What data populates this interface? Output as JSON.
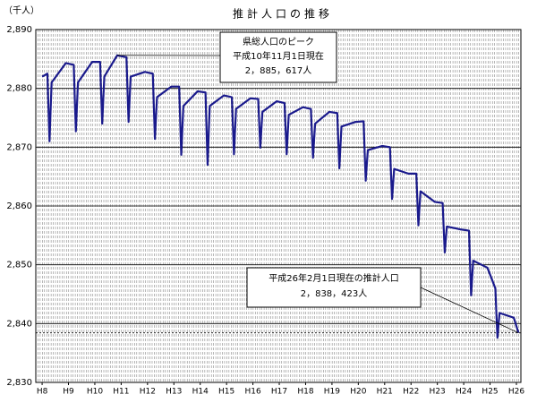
{
  "chart_data": {
    "type": "line",
    "title": "推計人口の推移",
    "y_label": "（千人）",
    "xlim": [
      7.76,
      26.17
    ],
    "xticks": [
      {
        "value": 8,
        "label": "H8"
      },
      {
        "value": 9,
        "label": "H9"
      },
      {
        "value": 10,
        "label": "H10"
      },
      {
        "value": 11,
        "label": "H11"
      },
      {
        "value": 12,
        "label": "H12"
      },
      {
        "value": 13,
        "label": "H13"
      },
      {
        "value": 14,
        "label": "H14"
      },
      {
        "value": 15,
        "label": "H15"
      },
      {
        "value": 16,
        "label": "H16"
      },
      {
        "value": 17,
        "label": "H17"
      },
      {
        "value": 18,
        "label": "H18"
      },
      {
        "value": 19,
        "label": "H19"
      },
      {
        "value": 20,
        "label": "H20"
      },
      {
        "value": 21,
        "label": "H21"
      },
      {
        "value": 22,
        "label": "H22"
      },
      {
        "value": 23,
        "label": "H23"
      },
      {
        "value": 24,
        "label": "H24"
      },
      {
        "value": 25,
        "label": "H25"
      },
      {
        "value": 26,
        "label": "H26"
      }
    ],
    "ylim": [
      2830,
      2890
    ],
    "yticks": [
      {
        "value": 2830,
        "label": "2,830"
      },
      {
        "value": 2840,
        "label": "2,840"
      },
      {
        "value": 2850,
        "label": "2,850"
      },
      {
        "value": 2860,
        "label": "2,860"
      },
      {
        "value": 2870,
        "label": "2,870"
      },
      {
        "value": 2880,
        "label": "2,880"
      },
      {
        "value": 2890,
        "label": "2,890"
      }
    ],
    "grid": true,
    "x": [
      8.0,
      8.2,
      8.28,
      8.36,
      8.9,
      9.2,
      9.28,
      9.36,
      9.9,
      10.2,
      10.28,
      10.36,
      10.85,
      11.2,
      11.28,
      11.36,
      11.9,
      12.2,
      12.28,
      12.36,
      12.9,
      13.2,
      13.28,
      13.36,
      13.9,
      14.2,
      14.28,
      14.36,
      14.9,
      15.2,
      15.28,
      15.36,
      15.9,
      16.2,
      16.28,
      16.36,
      16.9,
      17.2,
      17.28,
      17.36,
      17.9,
      18.2,
      18.28,
      18.36,
      18.9,
      19.2,
      19.28,
      19.36,
      19.9,
      20.2,
      20.28,
      20.36,
      20.9,
      21.2,
      21.28,
      21.36,
      21.9,
      22.2,
      22.28,
      22.36,
      22.9,
      23.2,
      23.28,
      23.36,
      23.9,
      24.2,
      24.28,
      24.36,
      24.9,
      25.2,
      25.28,
      25.36,
      25.9,
      26.08
    ],
    "series": [
      {
        "color": "#1a1a8c",
        "values": [
          2882.0,
          2882.5,
          2871,
          2881,
          2884.3,
          2884,
          2872.7,
          2881,
          2884.5,
          2884.5,
          2874,
          2882,
          2885.617,
          2885.3,
          2874.3,
          2882,
          2882.8,
          2882.5,
          2871.4,
          2878.5,
          2880.3,
          2880.3,
          2868.7,
          2877,
          2879.5,
          2879.3,
          2867,
          2877,
          2878.8,
          2878.5,
          2868.8,
          2876.5,
          2878.3,
          2878.2,
          2869.9,
          2876,
          2877.8,
          2877.5,
          2868.8,
          2875.5,
          2876.8,
          2876.5,
          2868.2,
          2874,
          2876,
          2875.8,
          2866.4,
          2873.5,
          2874.3,
          2874.4,
          2864.3,
          2869.5,
          2870.2,
          2870,
          2861.2,
          2866.3,
          2865.5,
          2865.5,
          2856.7,
          2862.5,
          2860.7,
          2860.5,
          2852.1,
          2856.5,
          2856,
          2855.8,
          2844.8,
          2850.7,
          2849.5,
          2846,
          2837.6,
          2841.8,
          2841,
          2838.423
        ]
      }
    ],
    "annotations": [
      {
        "lines": [
          "県総人口のピーク",
          "平成10年11月1日現在",
          "2，885，617人"
        ]
      },
      {
        "lines": [
          "平成26年2月1日現在の推計人口",
          "2，838，423人"
        ]
      }
    ]
  }
}
